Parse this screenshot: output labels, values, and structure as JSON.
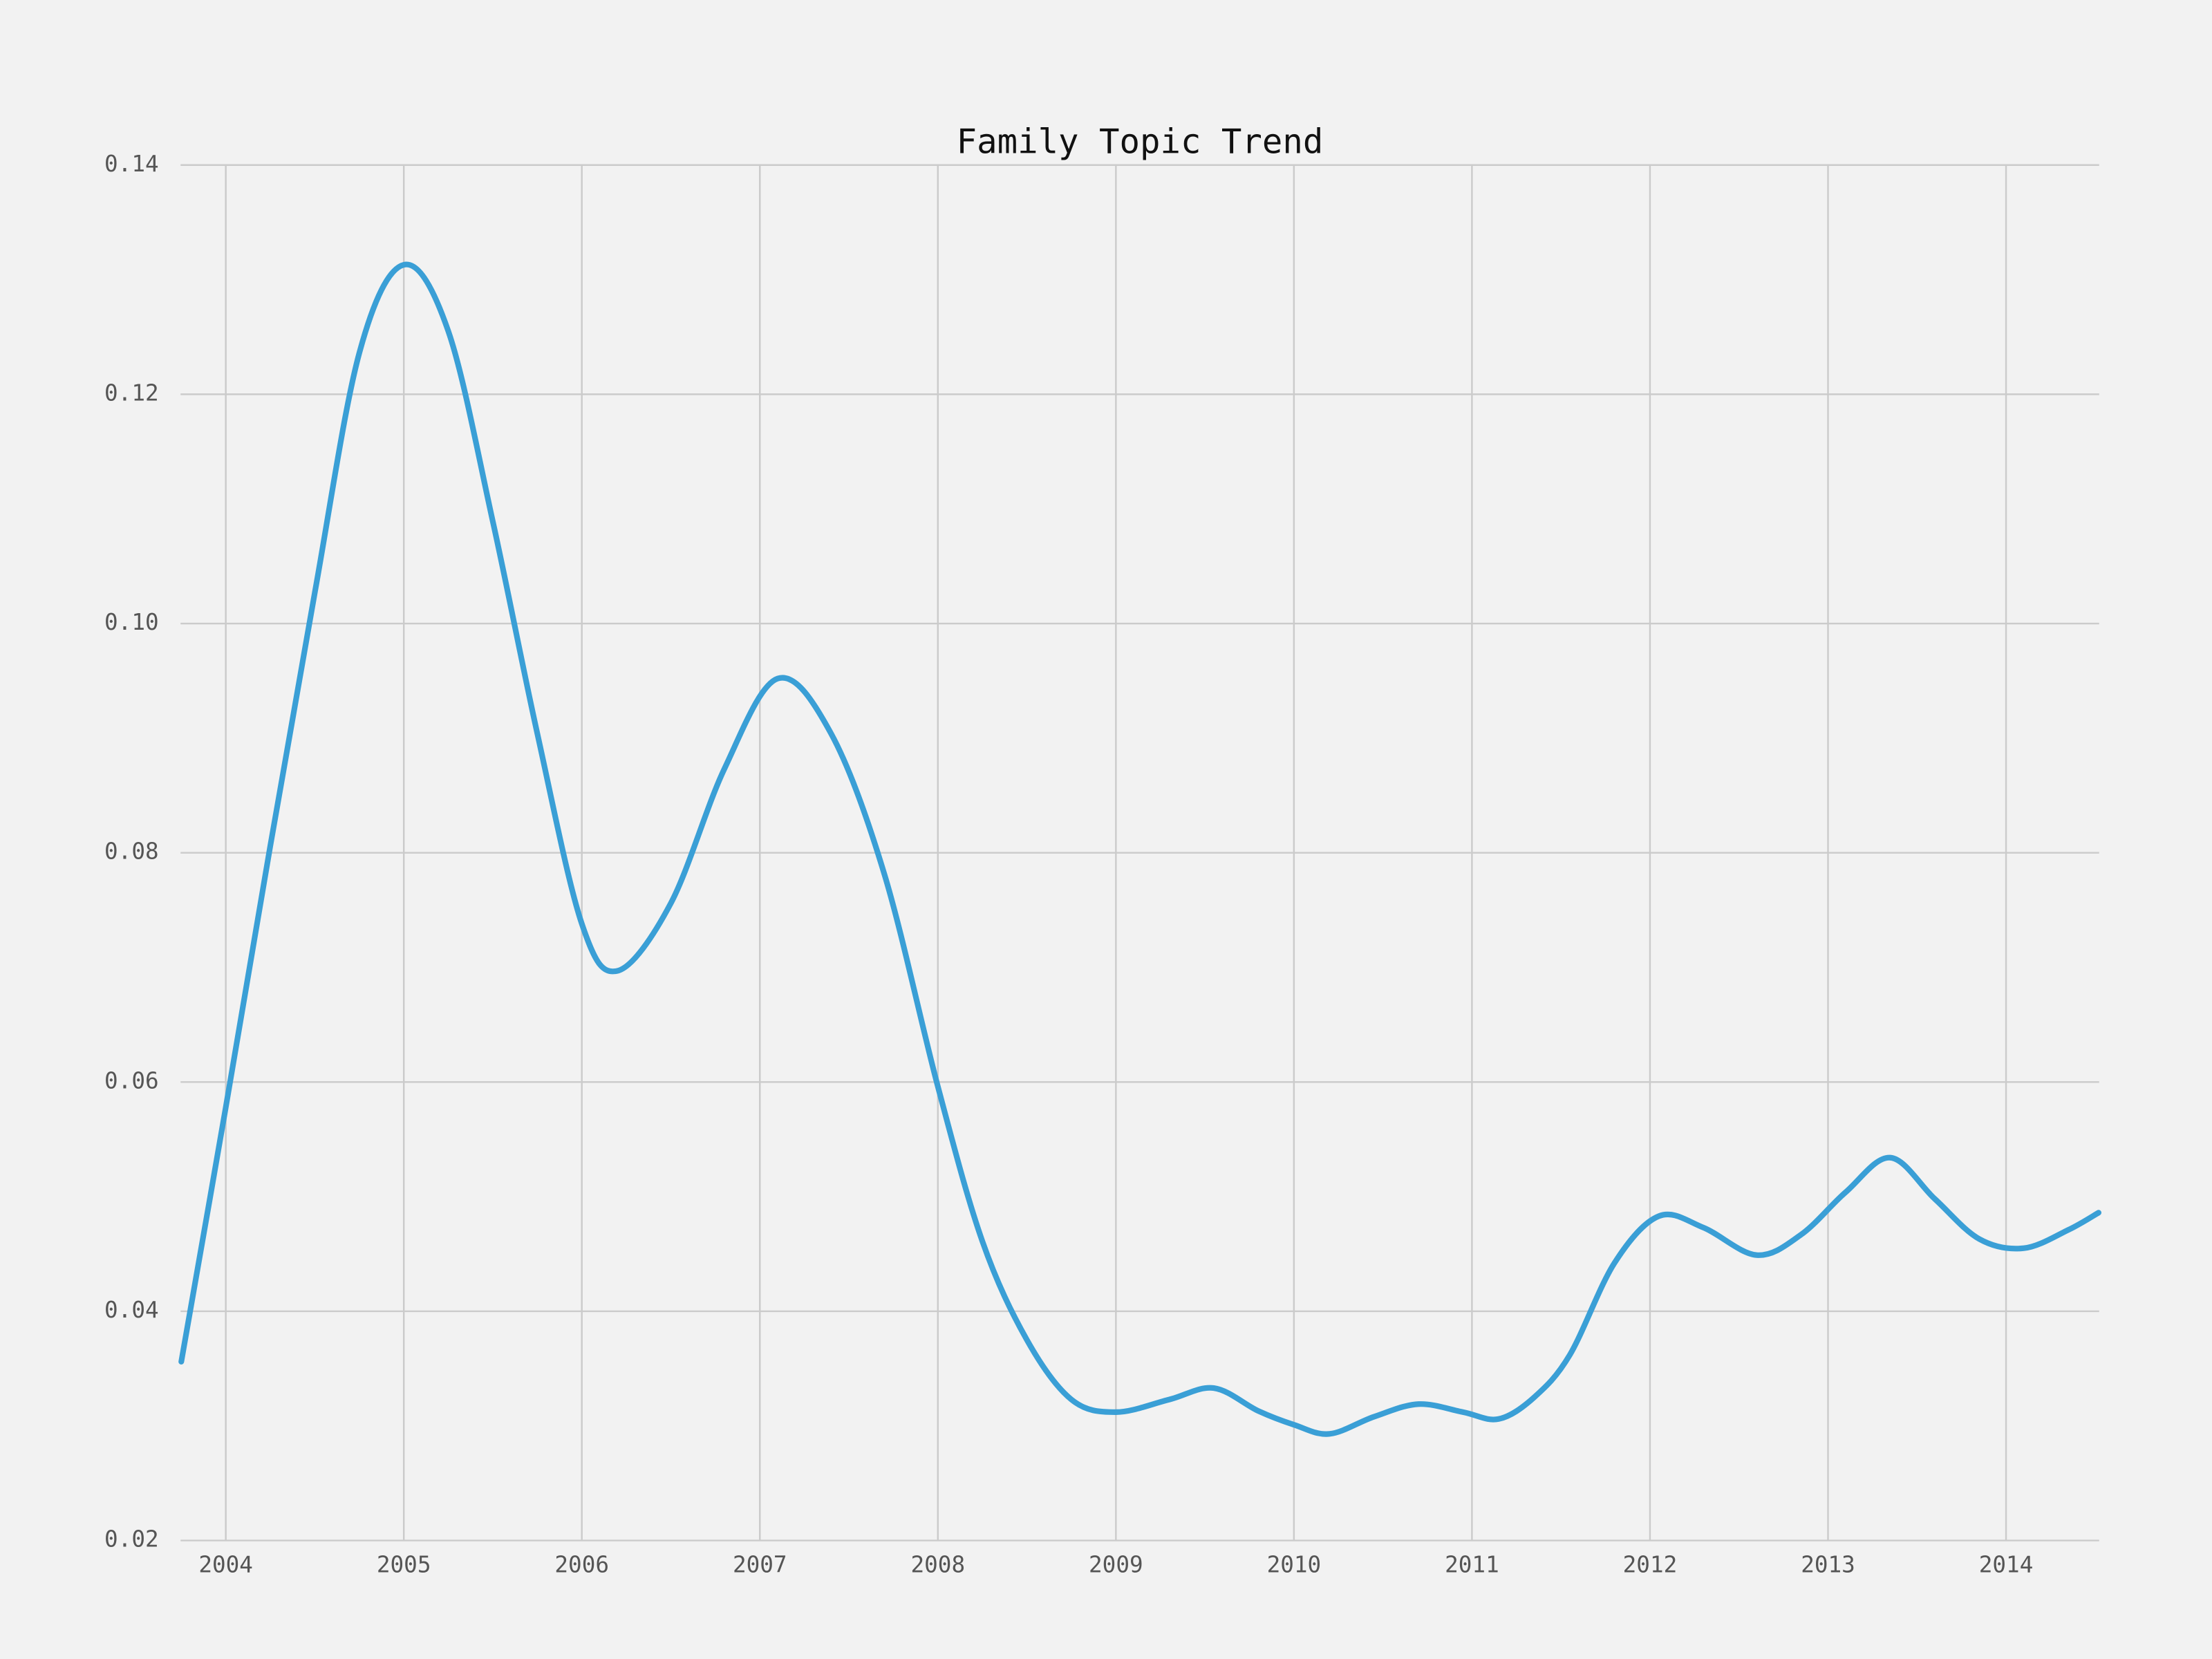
{
  "chart_data": {
    "type": "line",
    "title": "Family Topic Trend",
    "x": [
      2003.75,
      2004.0,
      2004.25,
      2004.5,
      2004.75,
      2005.0,
      2005.25,
      2005.5,
      2005.75,
      2006.0,
      2006.2,
      2006.5,
      2006.8,
      2007.1,
      2007.4,
      2007.7,
      2008.0,
      2008.25,
      2008.5,
      2008.75,
      2009.0,
      2009.3,
      2009.55,
      2009.8,
      2010.0,
      2010.2,
      2010.45,
      2010.7,
      2010.95,
      2011.15,
      2011.35,
      2011.55,
      2011.8,
      2012.05,
      2012.3,
      2012.6,
      2012.85,
      2013.1,
      2013.35,
      2013.6,
      2013.85,
      2014.1,
      2014.35,
      2014.52
    ],
    "series": [
      {
        "name": "Family",
        "color": "#3a9fd6",
        "values": [
          0.0356,
          0.0578,
          0.0806,
          0.1027,
          0.1236,
          0.1313,
          0.1255,
          0.1089,
          0.0904,
          0.0738,
          0.0697,
          0.0756,
          0.0873,
          0.0952,
          0.0904,
          0.0781,
          0.0596,
          0.0461,
          0.0375,
          0.0323,
          0.0312,
          0.0323,
          0.0333,
          0.0313,
          0.0301,
          0.0293,
          0.0308,
          0.0319,
          0.0312,
          0.0306,
          0.0325,
          0.0362,
          0.0442,
          0.0483,
          0.0473,
          0.0449,
          0.0467,
          0.0504,
          0.0534,
          0.0498,
          0.0463,
          0.0455,
          0.0471,
          0.0486
        ]
      }
    ],
    "xlim": [
      2003.746,
      2014.523
    ],
    "xticks": [
      2004,
      2005,
      2006,
      2007,
      2008,
      2009,
      2010,
      2011,
      2012,
      2013,
      2014
    ],
    "ylim": [
      0.02,
      0.14
    ],
    "yticks": [
      0.02,
      0.04,
      0.06,
      0.08,
      {
        "value": 0.1,
        "label": "0.10"
      },
      0.12,
      0.14
    ],
    "grid": true
  }
}
